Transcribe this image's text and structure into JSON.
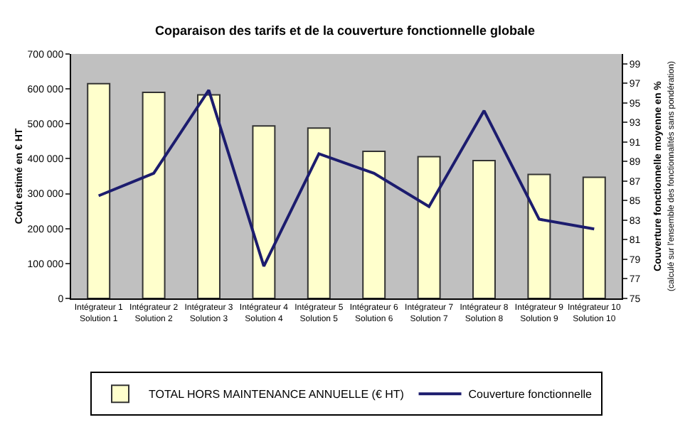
{
  "chart_data": {
    "type": "bar",
    "title": "Coparaison des tarifs et de la couverture fonctionnelle globale",
    "ylabel": "Coût estimé en € HT",
    "y2label": "Couverture fonctionnelle moyenne en %\n(calculé sur l'ensemble des fonctionnalités sans pondération)",
    "categories": [
      "Intégrateur 1\nSolution 1",
      "Intégrateur 2\nSolution 2",
      "Intégrateur 3\nSolution 3",
      "Intégrateur 4\nSolution 4",
      "Intégrateur 5\nSolution 5",
      "Intégrateur 6\nSolution 6",
      "Intégrateur 7\nSolution 7",
      "Intégrateur 8\nSolution 8",
      "Intégrateur 9\nSolution 9",
      "Intégrateur 10\nSolution 10"
    ],
    "series": [
      {
        "name": "TOTAL HORS MAINTENANCE ANNUELLE (€ HT)",
        "color": "#ffffcc",
        "values": [
          615000,
          590000,
          583000,
          494000,
          488000,
          421000,
          406000,
          395000,
          355000,
          347000
        ]
      },
      {
        "name": "Couverture fonctionnelle",
        "type": "line",
        "axis": "y2",
        "color": "#1c1c6e",
        "values": [
          85.5,
          87.8,
          96.3,
          78.3,
          89.8,
          87.8,
          84.4,
          94.2,
          83.1,
          82.1
        ]
      }
    ],
    "ylim": [
      0,
      700000
    ],
    "yticks": [
      {
        "value": 0,
        "label": "0"
      },
      {
        "value": 100000,
        "label": "100 000"
      },
      {
        "value": 200000,
        "label": "200 000"
      },
      {
        "value": 300000,
        "label": "300 000"
      },
      {
        "value": 400000,
        "label": "400 000"
      },
      {
        "value": 500000,
        "label": "500 000"
      },
      {
        "value": 600000,
        "label": "600 000"
      },
      {
        "value": 700000,
        "label": "700 000"
      }
    ],
    "y2lim": [
      75,
      100
    ],
    "y2ticks": [
      75,
      77,
      79,
      81,
      83,
      85,
      87,
      89,
      91,
      93,
      95,
      97,
      99
    ],
    "grid": false,
    "legend": "bottom",
    "marker": "none",
    "line_style": "solid"
  }
}
